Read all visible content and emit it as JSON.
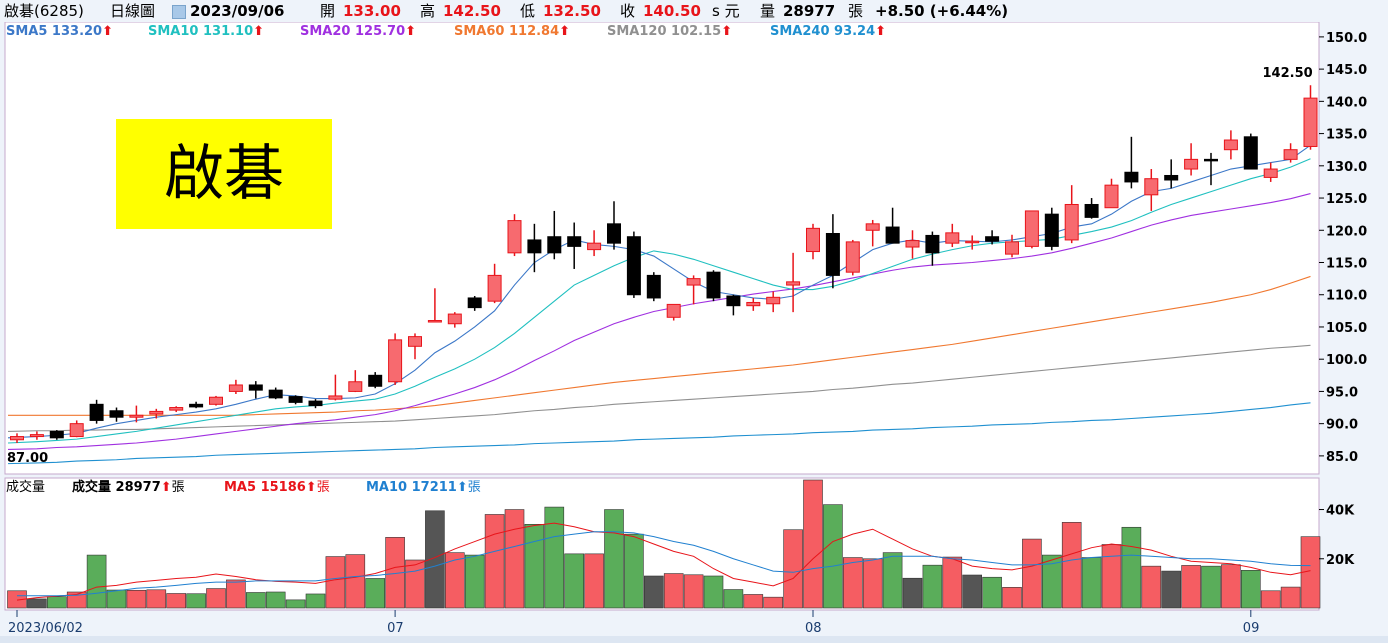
{
  "header": {
    "stock_name": "啟碁(6285)",
    "period": "日線圖",
    "date": "2023/09/06",
    "open_label": "開",
    "open": "133.00",
    "high_label": "高",
    "high": "142.50",
    "low_label": "低",
    "low": "132.50",
    "close_label": "收",
    "close": "140.50",
    "unit": "s 元",
    "volume_label": "量",
    "volume": "28977",
    "volume_unit": "張",
    "change": "+8.50 (+6.44%)"
  },
  "ma_legend": [
    {
      "text": "SMA5 133.20",
      "color": "#3c78c8"
    },
    {
      "text": "SMA10 131.10",
      "color": "#20c0c0"
    },
    {
      "text": "SMA20 125.70",
      "color": "#a030e0"
    },
    {
      "text": "SMA60 112.84",
      "color": "#f07830"
    },
    {
      "text": "SMA120 102.15",
      "color": "#909090"
    },
    {
      "text": "SMA240 93.24",
      "color": "#2090d0"
    }
  ],
  "up_arrow": "⬆",
  "stamp_text": "啟碁",
  "price_high_label": "142.50",
  "price_low_label": "87.00",
  "volume_legend": {
    "title": "成交量",
    "vol_text": "成交量 28977",
    "vol_unit": "張",
    "ma5_text": "MA5 15186",
    "ma5_unit": "張",
    "ma10_text": "MA10 17211",
    "ma10_unit": "張"
  },
  "chart_data": {
    "type": "candlestick",
    "price_ticks": [
      85.0,
      90.0,
      95.0,
      100.0,
      105.0,
      110.0,
      115.0,
      120.0,
      125.0,
      130.0,
      135.0,
      140.0,
      145.0,
      150.0
    ],
    "price_tick_labels": [
      "85.0",
      "90.0",
      "95.0",
      "100.0",
      "105.0",
      "110.0",
      "115.0",
      "120.0",
      "125.0",
      "130.0",
      "135.0",
      "140.0",
      "145.0",
      "150.0"
    ],
    "price_range": [
      82.5,
      152.0
    ],
    "volume_ticks": [
      20000,
      40000
    ],
    "volume_tick_labels": [
      "20K",
      "40K"
    ],
    "volume_range": [
      0,
      52000
    ],
    "x_labels": [
      {
        "label": "2023/06/02",
        "index": 0
      },
      {
        "label": "07",
        "index": 19
      },
      {
        "label": "08",
        "index": 40
      },
      {
        "label": "09",
        "index": 62
      }
    ],
    "candles": [
      [
        87.5,
        88.5,
        87.0,
        88.0
      ],
      [
        88.0,
        88.8,
        87.5,
        88.3
      ],
      [
        88.8,
        89.0,
        87.5,
        87.8
      ],
      [
        88.0,
        90.5,
        87.9,
        90.0
      ],
      [
        93.0,
        93.7,
        90.0,
        90.5
      ],
      [
        92.0,
        92.5,
        90.3,
        91.0
      ],
      [
        91.0,
        92.8,
        90.2,
        91.3
      ],
      [
        91.5,
        92.3,
        90.8,
        91.9
      ],
      [
        92.1,
        92.7,
        91.8,
        92.5
      ],
      [
        93.0,
        93.4,
        92.4,
        92.6
      ],
      [
        93.0,
        94.3,
        92.8,
        94.1
      ],
      [
        95.0,
        96.8,
        94.6,
        96.0
      ],
      [
        96.0,
        96.6,
        93.9,
        95.2
      ],
      [
        95.2,
        95.6,
        93.8,
        94.0
      ],
      [
        94.2,
        94.4,
        93.0,
        93.3
      ],
      [
        93.5,
        93.8,
        92.4,
        92.8
      ],
      [
        93.8,
        97.6,
        93.6,
        94.3
      ],
      [
        95.0,
        98.3,
        94.9,
        96.5
      ],
      [
        97.5,
        98.0,
        95.5,
        95.8
      ],
      [
        96.5,
        104.0,
        96.0,
        103.0
      ],
      [
        102.0,
        104.0,
        100.0,
        103.5
      ],
      [
        106.0,
        111.0,
        105.8,
        106.0
      ],
      [
        105.5,
        107.3,
        104.9,
        107.0
      ],
      [
        109.5,
        109.8,
        107.5,
        108.0
      ],
      [
        109.0,
        114.8,
        108.7,
        113.0
      ],
      [
        116.5,
        122.5,
        116.0,
        121.5
      ],
      [
        118.5,
        121.0,
        113.5,
        116.5
      ],
      [
        119.0,
        123.0,
        115.5,
        116.5
      ],
      [
        119.0,
        121.2,
        114.0,
        117.5
      ],
      [
        117.0,
        120.0,
        116.0,
        118.0
      ],
      [
        121.0,
        124.5,
        117.0,
        118.0
      ],
      [
        119.0,
        119.8,
        109.5,
        110.0
      ],
      [
        113.0,
        113.5,
        109.0,
        109.5
      ],
      [
        106.5,
        108.5,
        106.0,
        108.5
      ],
      [
        111.5,
        113.0,
        108.5,
        112.5
      ],
      [
        113.5,
        113.8,
        109.0,
        109.5
      ],
      [
        109.8,
        110.0,
        106.8,
        108.3
      ],
      [
        108.3,
        109.5,
        107.5,
        108.8
      ],
      [
        108.6,
        110.5,
        107.3,
        109.6
      ],
      [
        111.5,
        116.5,
        107.3,
        112.0
      ],
      [
        116.7,
        121.0,
        115.5,
        120.3
      ],
      [
        119.5,
        122.5,
        111.0,
        113.0
      ],
      [
        113.5,
        118.5,
        113.0,
        118.2
      ],
      [
        120.0,
        121.6,
        117.5,
        121.0
      ],
      [
        120.5,
        123.5,
        118.0,
        118.0
      ],
      [
        117.4,
        120.0,
        115.6,
        118.4
      ],
      [
        119.2,
        119.8,
        114.5,
        116.5
      ],
      [
        118.0,
        121.0,
        117.4,
        119.6
      ],
      [
        118.3,
        119.2,
        117.0,
        118.3
      ],
      [
        119.0,
        120.0,
        117.8,
        118.3
      ],
      [
        116.3,
        119.3,
        115.8,
        118.2
      ],
      [
        117.5,
        123.0,
        117.2,
        123.0
      ],
      [
        122.5,
        123.5,
        116.9,
        117.5
      ],
      [
        118.5,
        127.0,
        118.0,
        124.0
      ],
      [
        124.0,
        125.0,
        121.8,
        122.0
      ],
      [
        123.5,
        128.0,
        123.5,
        127.0
      ],
      [
        129.0,
        134.5,
        126.5,
        127.5
      ],
      [
        125.5,
        129.5,
        123.0,
        128.0
      ],
      [
        128.5,
        131.0,
        126.5,
        127.8
      ],
      [
        129.5,
        133.5,
        128.5,
        131.0
      ],
      [
        131.0,
        132.0,
        127.0,
        130.8
      ],
      [
        132.5,
        135.5,
        131.0,
        134.0
      ],
      [
        134.5,
        135.0,
        129.5,
        129.5
      ],
      [
        128.2,
        130.5,
        127.5,
        129.5
      ],
      [
        131.0,
        133.5,
        130.5,
        132.5
      ],
      [
        133.0,
        142.5,
        132.5,
        140.5
      ]
    ],
    "candle_fields": [
      "open",
      "high",
      "low",
      "close"
    ],
    "volume": [
      7000,
      3700,
      4600,
      6500,
      21500,
      7300,
      7200,
      7400,
      5900,
      5800,
      7900,
      11400,
      6300,
      6500,
      3300,
      5700,
      20900,
      21700,
      12000,
      28700,
      19500,
      39500,
      22500,
      21500,
      38000,
      40000,
      34000,
      41000,
      22000,
      22000,
      40000,
      30000,
      13000,
      14000,
      13500,
      13000,
      7500,
      5500,
      4400,
      31800,
      52000,
      42000,
      20500,
      20000,
      22500,
      12100,
      17400,
      20700,
      13400,
      12500,
      8400,
      28000,
      21500,
      34800,
      20500,
      25800,
      32800,
      17000,
      15000,
      17300,
      17000,
      17600,
      15300,
      7000,
      8500,
      28977
    ],
    "vol_ma5_line": [
      3200,
      4200,
      4800,
      5500,
      8500,
      9200,
      10500,
      11200,
      12000,
      12500,
      13800,
      12800,
      11500,
      10800,
      10500,
      10000,
      11500,
      12500,
      14000,
      16500,
      17500,
      20500,
      24000,
      27000,
      30000,
      32000,
      33500,
      34500,
      33000,
      31000,
      30500,
      29000,
      26000,
      23000,
      21000,
      16000,
      12000,
      10500,
      9000,
      12000,
      20000,
      27000,
      30000,
      32000,
      28000,
      24000,
      21000,
      20000,
      17000,
      16000,
      15500,
      17000,
      19500,
      22000,
      24500,
      26000,
      25000,
      23500,
      21000,
      19000,
      18500,
      18000,
      16500,
      14500,
      13500,
      15186
    ],
    "vol_ma10_line": [
      5000,
      5000,
      5000,
      5200,
      6000,
      7000,
      8000,
      8500,
      9200,
      10000,
      10500,
      10500,
      11000,
      11000,
      11000,
      11000,
      12000,
      12800,
      13200,
      14000,
      15000,
      17000,
      19500,
      21000,
      23000,
      25000,
      27000,
      29000,
      30000,
      31000,
      31000,
      30500,
      29000,
      27000,
      25500,
      23000,
      20000,
      17500,
      15000,
      14500,
      16000,
      17000,
      18500,
      19500,
      21000,
      21000,
      21000,
      20000,
      19500,
      18500,
      17500,
      17500,
      18000,
      19500,
      20500,
      21000,
      21500,
      21000,
      20500,
      20000,
      20000,
      19500,
      19000,
      18000,
      17300,
      17211
    ],
    "sma5_line": [
      87.8,
      88.0,
      88.2,
      88.5,
      89.3,
      90.0,
      90.5,
      91.0,
      91.4,
      91.8,
      92.3,
      93.0,
      93.8,
      94.5,
      94.3,
      93.9,
      93.9,
      94.0,
      94.6,
      96.2,
      98.3,
      101.0,
      102.8,
      105.0,
      107.5,
      111.5,
      115.0,
      117.0,
      118.5,
      117.8,
      117.5,
      117.0,
      116.0,
      114.0,
      112.0,
      110.5,
      110.0,
      109.5,
      109.3,
      109.8,
      111.5,
      113.0,
      115.0,
      117.0,
      118.0,
      118.5,
      118.0,
      118.4,
      118.3,
      118.2,
      118.5,
      119.0,
      119.5,
      120.5,
      121.0,
      122.5,
      124.5,
      126.0,
      126.5,
      127.5,
      128.5,
      129.5,
      130.0,
      130.5,
      131.0,
      133.2
    ],
    "sma10_line": [
      87.0,
      87.2,
      87.4,
      87.6,
      88.0,
      88.4,
      88.8,
      89.3,
      89.8,
      90.3,
      90.8,
      91.3,
      91.8,
      92.3,
      92.6,
      92.8,
      93.2,
      93.5,
      93.8,
      94.6,
      95.8,
      97.2,
      98.5,
      100.0,
      101.8,
      104.0,
      106.5,
      109.0,
      111.5,
      113.0,
      114.5,
      115.8,
      116.8,
      116.3,
      115.5,
      114.5,
      113.5,
      112.5,
      111.5,
      110.8,
      110.8,
      111.3,
      112.2,
      113.3,
      114.4,
      115.5,
      116.3,
      117.0,
      117.6,
      118.0,
      118.2,
      118.4,
      118.6,
      119.2,
      119.8,
      120.5,
      121.5,
      122.8,
      124.0,
      125.0,
      126.0,
      127.0,
      128.0,
      128.8,
      129.8,
      131.1
    ],
    "sma20_line": [
      86.0,
      86.1,
      86.3,
      86.4,
      86.6,
      86.8,
      87.0,
      87.3,
      87.6,
      88.0,
      88.4,
      88.8,
      89.2,
      89.6,
      90.0,
      90.3,
      90.6,
      91.0,
      91.4,
      92.0,
      92.8,
      93.7,
      94.6,
      95.6,
      96.8,
      98.2,
      99.8,
      101.3,
      102.9,
      104.2,
      105.5,
      106.5,
      107.4,
      108.0,
      108.6,
      109.1,
      109.6,
      110.1,
      110.5,
      110.9,
      111.4,
      112.0,
      112.6,
      113.2,
      113.8,
      114.3,
      114.6,
      114.8,
      115.0,
      115.3,
      115.6,
      116.0,
      116.5,
      117.2,
      118.0,
      118.8,
      119.8,
      120.8,
      121.6,
      122.3,
      122.8,
      123.3,
      123.8,
      124.3,
      124.9,
      125.7
    ],
    "sma60_line": [
      91.3,
      91.3,
      91.3,
      91.3,
      91.3,
      91.3,
      91.3,
      91.3,
      91.3,
      91.3,
      91.3,
      91.3,
      91.4,
      91.5,
      91.6,
      91.7,
      91.8,
      92.0,
      92.1,
      92.3,
      92.5,
      92.8,
      93.2,
      93.6,
      94.0,
      94.4,
      94.8,
      95.2,
      95.6,
      96.0,
      96.4,
      96.7,
      97.0,
      97.3,
      97.6,
      97.9,
      98.2,
      98.5,
      98.8,
      99.1,
      99.5,
      99.9,
      100.3,
      100.7,
      101.1,
      101.5,
      101.9,
      102.3,
      102.8,
      103.3,
      103.8,
      104.3,
      104.8,
      105.3,
      105.8,
      106.3,
      106.8,
      107.3,
      107.8,
      108.3,
      108.8,
      109.4,
      110.0,
      110.8,
      111.8,
      112.84
    ],
    "sma120_line": [
      88.8,
      88.9,
      88.9,
      89.0,
      89.0,
      89.1,
      89.1,
      89.2,
      89.3,
      89.4,
      89.5,
      89.6,
      89.7,
      89.8,
      89.9,
      90.0,
      90.1,
      90.2,
      90.3,
      90.4,
      90.6,
      90.8,
      91.0,
      91.2,
      91.4,
      91.7,
      92.0,
      92.2,
      92.5,
      92.7,
      93.0,
      93.2,
      93.4,
      93.6,
      93.8,
      94.0,
      94.2,
      94.4,
      94.6,
      94.8,
      95.0,
      95.3,
      95.5,
      95.8,
      96.1,
      96.3,
      96.6,
      96.9,
      97.2,
      97.5,
      97.8,
      98.1,
      98.4,
      98.7,
      99.0,
      99.3,
      99.6,
      99.9,
      100.2,
      100.5,
      100.8,
      101.1,
      101.4,
      101.7,
      101.9,
      102.15
    ],
    "sma240_line": [
      83.8,
      83.9,
      84.0,
      84.2,
      84.3,
      84.4,
      84.6,
      84.7,
      84.8,
      84.9,
      85.1,
      85.2,
      85.3,
      85.4,
      85.5,
      85.6,
      85.7,
      85.8,
      85.9,
      86.0,
      86.1,
      86.3,
      86.4,
      86.5,
      86.6,
      86.7,
      86.9,
      87.0,
      87.1,
      87.2,
      87.3,
      87.5,
      87.6,
      87.7,
      87.8,
      87.9,
      88.1,
      88.2,
      88.3,
      88.4,
      88.6,
      88.7,
      88.8,
      89.0,
      89.1,
      89.2,
      89.4,
      89.5,
      89.6,
      89.8,
      89.9,
      90.0,
      90.2,
      90.3,
      90.5,
      90.6,
      90.8,
      91.0,
      91.2,
      91.4,
      91.6,
      91.9,
      92.2,
      92.5,
      92.9,
      93.24
    ]
  },
  "colors": {
    "up": "#f76a6f",
    "down": "#000000",
    "vol_up": "#f55d62",
    "vol_down": "#5aad5a",
    "vol_flat": "#555555",
    "vol_ma5": "#e8141a",
    "vol_ma10": "#2080d0",
    "panel_border": "#c5a8cc",
    "grid": "#ffffff"
  }
}
